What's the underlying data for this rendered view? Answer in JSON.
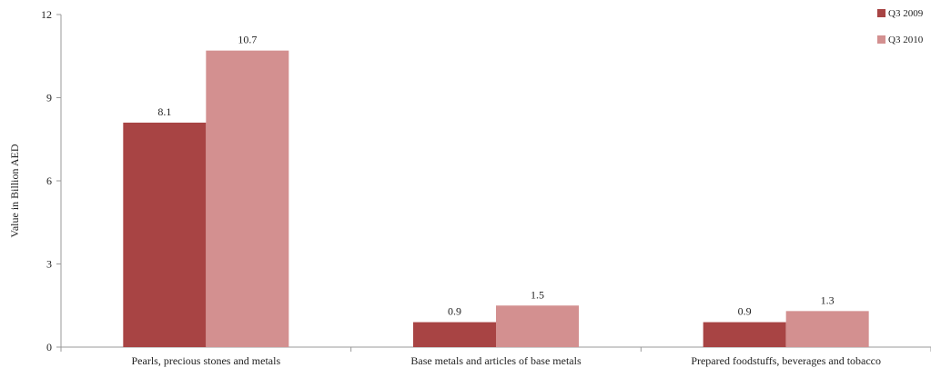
{
  "chart_data": {
    "type": "bar",
    "categories": [
      "Pearls, precious stones and metals",
      "Base metals and articles of base metals",
      "Prepared foodstuffs, beverages and tobacco"
    ],
    "series": [
      {
        "name": "Q3 2009",
        "values": [
          8.1,
          0.9,
          0.9
        ],
        "color": "#a84444",
        "labels": [
          "8.1",
          "0.9",
          "0.9"
        ]
      },
      {
        "name": "Q3 2010",
        "values": [
          10.7,
          1.5,
          1.3
        ],
        "color": "#d39090",
        "labels": [
          "10.7",
          "1.5",
          "1.3"
        ]
      }
    ],
    "ylabel": "Value in Billion AED",
    "ylim": [
      0,
      12
    ],
    "yticks": [
      0,
      3,
      6,
      9,
      12
    ],
    "ytick_labels": [
      "0",
      "3",
      "6",
      "9",
      "12"
    ],
    "grid": false,
    "legend_position": "top-right"
  }
}
